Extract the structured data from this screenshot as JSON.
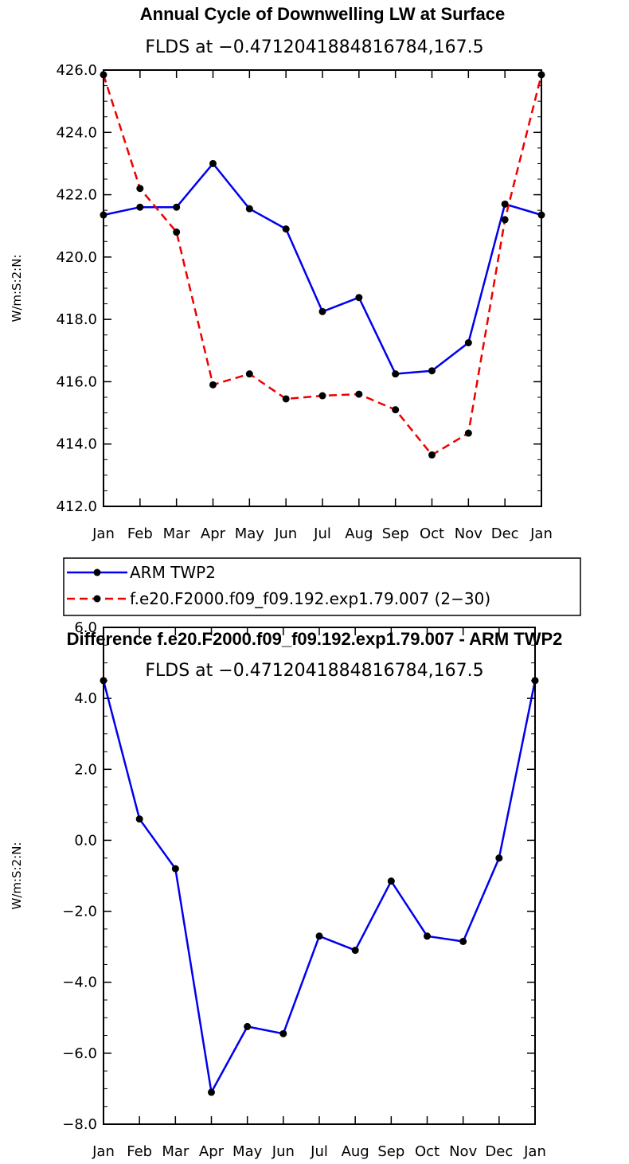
{
  "chart_data": [
    {
      "type": "line",
      "title": "Annual Cycle of Downwelling LW at Surface",
      "subtitle": "FLDS at −0.4712041884816784,167.5",
      "xlabel": "",
      "ylabel": "W/m:S:2:N:",
      "ylim": [
        412.0,
        426.0
      ],
      "yticks": [
        412.0,
        414.0,
        416.0,
        418.0,
        420.0,
        422.0,
        424.0,
        426.0
      ],
      "ytick_labels": [
        "412.0",
        "414.0",
        "416.0",
        "418.0",
        "420.0",
        "422.0",
        "424.0",
        "426.0"
      ],
      "categories": [
        "Jan",
        "Feb",
        "Mar",
        "Apr",
        "May",
        "Jun",
        "Jul",
        "Aug",
        "Sep",
        "Oct",
        "Nov",
        "Dec",
        "Jan"
      ],
      "series": [
        {
          "name": "ARM TWP2",
          "color": "#0000ee",
          "dash": "solid",
          "values": [
            421.35,
            421.6,
            421.6,
            423.0,
            421.55,
            420.9,
            418.25,
            418.7,
            416.25,
            416.35,
            417.25,
            421.7,
            421.35
          ]
        },
        {
          "name": "f.e20.F2000.f09_f09.192.exp1.79.007 (2−30)",
          "color": "#ee0000",
          "dash": "dashed",
          "values": [
            425.85,
            422.2,
            420.8,
            415.9,
            416.25,
            415.45,
            415.55,
            415.6,
            415.1,
            413.65,
            414.35,
            421.2,
            425.85
          ]
        }
      ],
      "legend": [
        {
          "label": "ARM TWP2",
          "color": "#0000ee",
          "dash": "solid"
        },
        {
          "label": "f.e20.F2000.f09_f09.192.exp1.79.007 (2−30)",
          "color": "#ee0000",
          "dash": "dashed"
        }
      ]
    },
    {
      "type": "line",
      "title": "Difference f.e20.F2000.f09_f09.192.exp1.79.007 - ARM TWP2",
      "subtitle": "FLDS at −0.4712041884816784,167.5",
      "xlabel": "",
      "ylabel": "W/m:S:2:N:",
      "ylim": [
        -8.0,
        6.0
      ],
      "yticks": [
        -8.0,
        -6.0,
        -4.0,
        -2.0,
        0.0,
        2.0,
        4.0,
        6.0
      ],
      "ytick_labels": [
        "−8.0",
        "−6.0",
        "−4.0",
        "−2.0",
        "0.0",
        "2.0",
        "4.0",
        "6.0"
      ],
      "categories": [
        "Jan",
        "Feb",
        "Mar",
        "Apr",
        "May",
        "Jun",
        "Jul",
        "Aug",
        "Sep",
        "Oct",
        "Nov",
        "Dec",
        "Jan"
      ],
      "series": [
        {
          "name": "Difference",
          "color": "#0000ee",
          "dash": "solid",
          "values": [
            4.5,
            0.6,
            -0.8,
            -7.1,
            -5.25,
            -5.45,
            -2.7,
            -3.1,
            -1.15,
            -2.7,
            -2.85,
            -0.5,
            4.5
          ]
        }
      ]
    }
  ]
}
